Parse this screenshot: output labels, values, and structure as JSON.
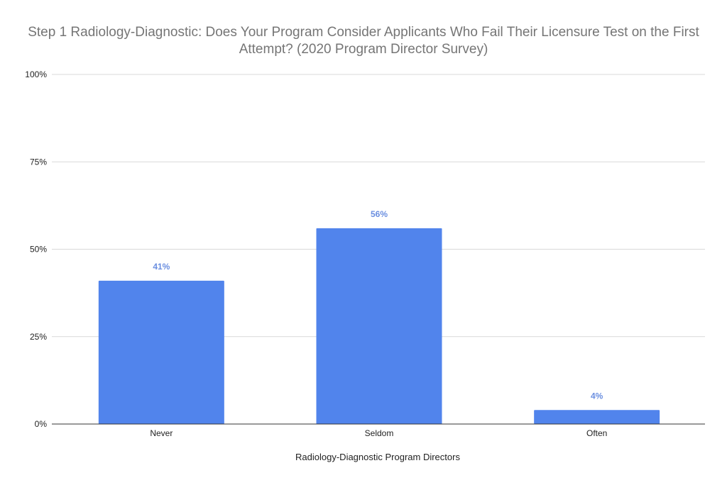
{
  "chart_data": {
    "type": "bar",
    "title": "Step 1 Radiology-Diagnostic: Does Your Program Consider Applicants Who Fail Their Licensure Test on the First Attempt? (2020 Program Director Survey)",
    "xlabel": "Radiology-Diagnostic Program Directors",
    "ylabel": "",
    "categories": [
      "Never",
      "Seldom",
      "Often"
    ],
    "values": [
      41,
      56,
      4
    ],
    "data_labels": [
      "41%",
      "56%",
      "4%"
    ],
    "ylim": [
      0,
      100
    ],
    "yticks": [
      0,
      25,
      50,
      75,
      100
    ],
    "ytick_labels": [
      "0%",
      "25%",
      "50%",
      "75%",
      "100%"
    ],
    "grid": true,
    "legend": "none",
    "colors": {
      "bar": "#5184ec",
      "label": "#6b8fe0",
      "title": "#757575",
      "grid": "#d9d9d9"
    }
  }
}
